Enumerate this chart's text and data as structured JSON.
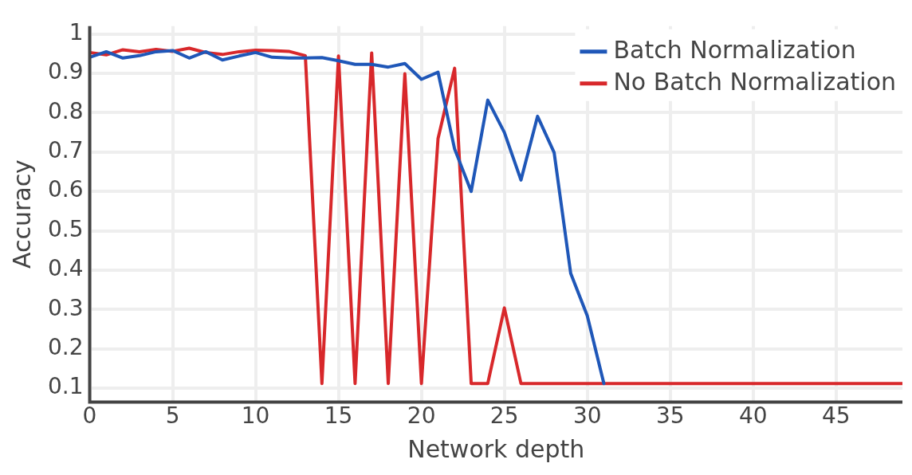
{
  "chart_data": {
    "type": "line",
    "xlabel": "Network depth",
    "ylabel": "Accuracy",
    "x": [
      0,
      1,
      2,
      3,
      4,
      5,
      6,
      7,
      8,
      9,
      10,
      11,
      12,
      13,
      14,
      15,
      16,
      17,
      18,
      19,
      20,
      21,
      22,
      23,
      24,
      25,
      26,
      27,
      28,
      29,
      30,
      31,
      32,
      33,
      34,
      35,
      36,
      37,
      38,
      39,
      40,
      41,
      42,
      43,
      44,
      45,
      46,
      47,
      48,
      49
    ],
    "series": [
      {
        "name": "Batch Normalization",
        "color": "#1f57b8",
        "values": [
          0.941,
          0.955,
          0.939,
          0.945,
          0.955,
          0.958,
          0.939,
          0.955,
          0.934,
          0.944,
          0.953,
          0.941,
          0.939,
          0.939,
          0.94,
          0.932,
          0.923,
          0.923,
          0.916,
          0.925,
          0.885,
          0.903,
          0.708,
          0.6,
          0.832,
          0.75,
          0.629,
          0.791,
          0.699,
          0.392,
          0.284,
          0.112,
          null,
          null,
          null,
          null,
          null,
          null,
          null,
          null,
          null,
          null,
          null,
          null,
          null,
          null,
          null,
          null,
          null,
          null
        ]
      },
      {
        "name": "No Batch Normalization",
        "color": "#d8282b",
        "values": [
          0.953,
          0.947,
          0.96,
          0.955,
          0.961,
          0.956,
          0.964,
          0.953,
          0.948,
          0.955,
          0.959,
          0.958,
          0.956,
          0.945,
          0.112,
          0.944,
          0.112,
          0.952,
          0.112,
          0.899,
          0.112,
          0.734,
          0.913,
          0.112,
          0.112,
          0.304,
          0.112,
          0.112,
          0.112,
          0.112,
          0.112,
          0.112,
          0.112,
          0.112,
          0.112,
          0.112,
          0.112,
          0.112,
          0.112,
          0.112,
          0.112,
          0.112,
          0.112,
          0.112,
          0.112,
          0.112,
          0.112,
          0.112,
          0.112,
          0.112
        ]
      }
    ],
    "xlim": [
      0,
      49
    ],
    "xticks": [
      0,
      5,
      10,
      15,
      20,
      25,
      30,
      35,
      40,
      45
    ],
    "ylim": [
      0.065,
      1.02
    ],
    "yticks": [
      0.1,
      0.2,
      0.3,
      0.4,
      0.5,
      0.6,
      0.7,
      0.8,
      0.9,
      1
    ],
    "grid": true,
    "legend": "top right",
    "marker": "none",
    "line_style": "solid"
  }
}
